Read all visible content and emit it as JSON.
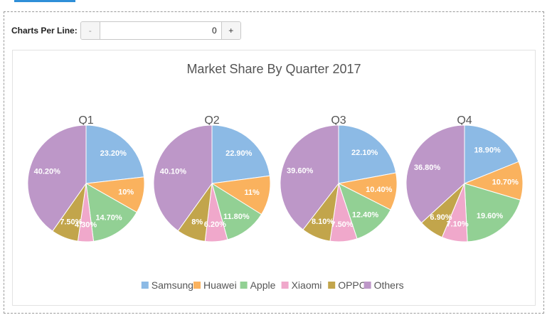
{
  "controls": {
    "label": "Charts Per Line:",
    "decrement_label": "-",
    "increment_label": "+",
    "value": "0"
  },
  "colors": {
    "Samsung": "#8cbae5",
    "Huawei": "#fab25e",
    "Apple": "#92d094",
    "Xiaomi": "#f0a8cb",
    "OPPO": "#c2a54b",
    "Others": "#bd97c8"
  },
  "chart_data": {
    "type": "pie",
    "title": "Market Share By Quarter 2017",
    "legend_position": "bottom",
    "categories": [
      "Samsung",
      "Huawei",
      "Apple",
      "Xiaomi",
      "OPPO",
      "Others"
    ],
    "pies": [
      {
        "name": "Q1",
        "values": [
          23.2,
          10,
          14.7,
          4.3,
          7.5,
          40.2
        ],
        "labels": [
          "23.20%",
          "10%",
          "14.70%",
          "4.30%",
          "7.50%",
          "40.20%"
        ]
      },
      {
        "name": "Q2",
        "values": [
          22.9,
          11,
          11.8,
          6.2,
          8,
          40.1
        ],
        "labels": [
          "22.90%",
          "11%",
          "11.80%",
          "6.20%",
          "8%",
          "40.10%"
        ]
      },
      {
        "name": "Q3",
        "values": [
          22.1,
          10.4,
          12.4,
          7.5,
          8.1,
          39.6
        ],
        "labels": [
          "22.10%",
          "10.40%",
          "12.40%",
          "7.50%",
          "8.10%",
          "39.60%"
        ]
      },
      {
        "name": "Q4",
        "values": [
          18.9,
          10.7,
          19.6,
          7.1,
          6.9,
          36.8
        ],
        "labels": [
          "18.90%",
          "10.70%",
          "19.60%",
          "7.10%",
          "6.90%",
          "36.80%"
        ]
      }
    ]
  }
}
